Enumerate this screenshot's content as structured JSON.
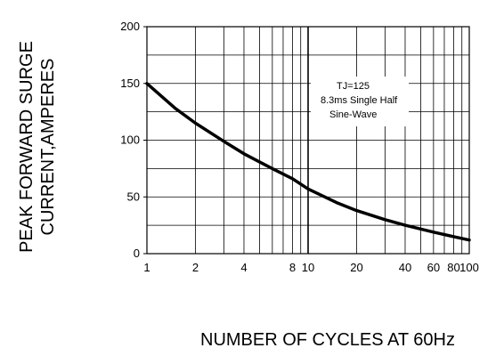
{
  "chart_data": {
    "type": "line",
    "ylabel_lines": [
      "PEAK FORWARD SURGE",
      "CURRENT,AMPERES"
    ],
    "xlabel": "NUMBER  OF  CYCLES AT 60Hz",
    "x_scale": "log",
    "xlim": [
      1,
      100
    ],
    "ylim": [
      0,
      200
    ],
    "grid": true,
    "x_ticks": [
      1,
      2,
      4,
      8,
      10,
      20,
      40,
      60,
      80,
      100
    ],
    "x_tick_labels": [
      "1",
      "2",
      "4",
      "8",
      "10",
      "20",
      "40",
      "60",
      "80",
      "100"
    ],
    "y_ticks": [
      0,
      50,
      100,
      150,
      200
    ],
    "y_tick_labels": [
      "0",
      "50",
      "100",
      "150",
      "200"
    ],
    "annotation_lines": [
      "TJ=125",
      "8.3ms Single Half",
      "Sine-Wave"
    ],
    "series": [
      {
        "x": [
          1,
          1.5,
          2,
          3,
          4,
          6,
          8,
          10,
          15,
          20,
          30,
          40,
          60,
          80,
          100
        ],
        "y": [
          150,
          128,
          115,
          99,
          88,
          75,
          66,
          57,
          45,
          38,
          30,
          25,
          19,
          15,
          12
        ]
      }
    ]
  }
}
